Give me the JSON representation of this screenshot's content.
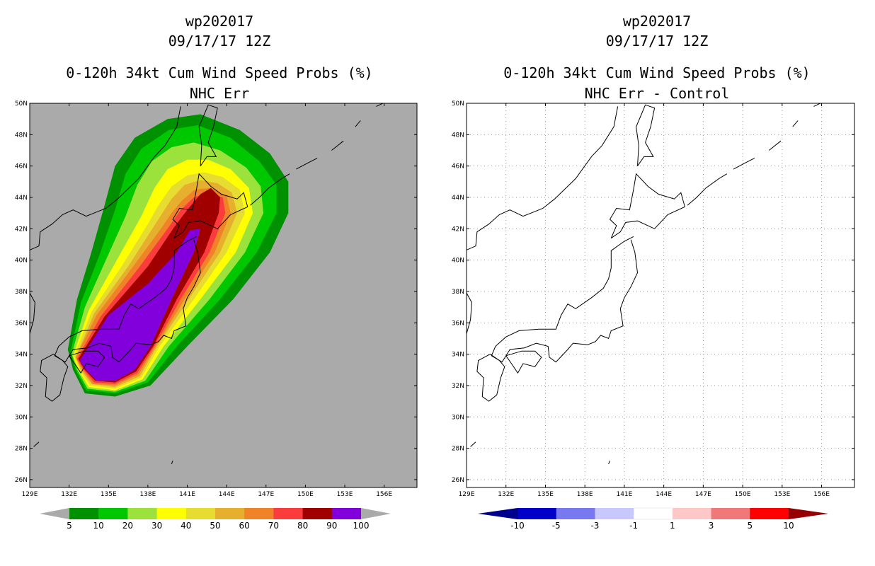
{
  "chart_data": [
    {
      "type": "heatmap",
      "storm_id": "wp202017",
      "datetime": "09/17/17 12Z",
      "title": "0-120h 34kt Cum Wind Speed Probs (%)",
      "subtitle": "NHC Err",
      "x_ticks": [
        "129E",
        "132E",
        "135E",
        "138E",
        "141E",
        "144E",
        "147E",
        "150E",
        "153E",
        "156E"
      ],
      "y_ticks": [
        "50N",
        "48N",
        "46N",
        "44N",
        "42N",
        "40N",
        "38N",
        "36N",
        "34N",
        "32N",
        "30N",
        "28N",
        "26N"
      ],
      "xlim": [
        129,
        158.5
      ],
      "ylim": [
        25.5,
        50
      ],
      "grid": false,
      "background": "#aaaaaa",
      "colorbar": {
        "labels": [
          "5",
          "10",
          "20",
          "30",
          "40",
          "50",
          "60",
          "70",
          "80",
          "90",
          "100"
        ],
        "colors": [
          "#009100",
          "#00c800",
          "#9be23c",
          "#ffff00",
          "#e6dc32",
          "#e6af2d",
          "#f08228",
          "#fa3c3c",
          "#a00000",
          "#8200dc"
        ],
        "end_color": "#aaaaaa"
      },
      "contours": [
        {
          "level": 5,
          "color": "#009100",
          "points": [
            [
              131.9,
              34.3
            ],
            [
              132.3,
              33.0
            ],
            [
              133.2,
              31.5
            ],
            [
              135.5,
              31.3
            ],
            [
              138.2,
              32.0
            ],
            [
              141.0,
              34.5
            ],
            [
              144.5,
              37.5
            ],
            [
              147.3,
              40.5
            ],
            [
              148.7,
              43.0
            ],
            [
              148.7,
              45.0
            ],
            [
              147.3,
              46.8
            ],
            [
              145.0,
              48.3
            ],
            [
              142.0,
              49.3
            ],
            [
              139.5,
              49.0
            ],
            [
              137.0,
              47.8
            ],
            [
              135.5,
              46.0
            ],
            [
              134.7,
              43.5
            ],
            [
              133.7,
              40.5
            ],
            [
              132.6,
              37.5
            ]
          ]
        },
        {
          "level": 10,
          "color": "#00c800",
          "points": [
            [
              132.1,
              34.1
            ],
            [
              132.5,
              33.0
            ],
            [
              133.3,
              31.7
            ],
            [
              135.5,
              31.5
            ],
            [
              138.0,
              32.2
            ],
            [
              140.2,
              34.5
            ],
            [
              143.5,
              37.5
            ],
            [
              146.3,
              40.5
            ],
            [
              147.8,
              43.0
            ],
            [
              147.8,
              44.8
            ],
            [
              146.5,
              46.3
            ],
            [
              144.3,
              47.8
            ],
            [
              141.8,
              48.6
            ],
            [
              139.6,
              48.3
            ],
            [
              137.5,
              47.1
            ],
            [
              136.3,
              45.5
            ],
            [
              135.5,
              43.2
            ],
            [
              134.3,
              40.3
            ],
            [
              132.9,
              37.3
            ]
          ]
        },
        {
          "level": 20,
          "color": "#9be23c",
          "points": [
            [
              132.2,
              34.0
            ],
            [
              132.6,
              33.0
            ],
            [
              133.4,
              31.8
            ],
            [
              135.5,
              31.6
            ],
            [
              137.8,
              32.3
            ],
            [
              139.6,
              34.5
            ],
            [
              142.7,
              37.5
            ],
            [
              145.4,
              40.5
            ],
            [
              146.8,
              43.0
            ],
            [
              146.6,
              44.7
            ],
            [
              145.5,
              45.9
            ],
            [
              143.5,
              47.0
            ],
            [
              141.5,
              47.5
            ],
            [
              139.8,
              47.2
            ],
            [
              138.3,
              46.3
            ],
            [
              137.2,
              44.8
            ],
            [
              136.3,
              42.8
            ],
            [
              134.8,
              40.0
            ],
            [
              133.2,
              37.0
            ]
          ]
        },
        {
          "level": 30,
          "color": "#ffff00",
          "points": [
            [
              132.3,
              33.9
            ],
            [
              132.7,
              33.0
            ],
            [
              133.5,
              31.9
            ],
            [
              135.5,
              31.7
            ],
            [
              137.6,
              32.4
            ],
            [
              139.2,
              34.5
            ],
            [
              142.0,
              37.5
            ],
            [
              144.7,
              40.5
            ],
            [
              146.0,
              43.0
            ],
            [
              145.7,
              44.6
            ],
            [
              144.3,
              45.8
            ],
            [
              142.6,
              46.4
            ],
            [
              141.0,
              46.4
            ],
            [
              139.5,
              45.8
            ],
            [
              138.5,
              44.6
            ],
            [
              137.5,
              42.8
            ],
            [
              135.5,
              39.8
            ],
            [
              133.5,
              36.8
            ]
          ]
        },
        {
          "level": 40,
          "color": "#e6dc32",
          "points": [
            [
              132.4,
              33.9
            ],
            [
              132.8,
              33.0
            ],
            [
              133.6,
              32.0
            ],
            [
              135.5,
              31.8
            ],
            [
              137.5,
              32.5
            ],
            [
              138.9,
              34.5
            ],
            [
              141.5,
              37.5
            ],
            [
              144.0,
              40.5
            ],
            [
              145.4,
              43.0
            ],
            [
              145.0,
              44.5
            ],
            [
              143.7,
              45.3
            ],
            [
              142.3,
              45.6
            ],
            [
              141.0,
              45.4
            ],
            [
              139.8,
              44.7
            ],
            [
              138.8,
              43.5
            ],
            [
              138.0,
              42.3
            ],
            [
              136.0,
              39.6
            ],
            [
              133.7,
              36.7
            ]
          ]
        },
        {
          "level": 50,
          "color": "#e6af2d",
          "points": [
            [
              132.5,
              33.8
            ],
            [
              132.9,
              33.0
            ],
            [
              133.7,
              32.1
            ],
            [
              135.5,
              31.9
            ],
            [
              137.4,
              32.6
            ],
            [
              138.7,
              34.5
            ],
            [
              141.1,
              37.5
            ],
            [
              143.5,
              40.5
            ],
            [
              144.8,
              43.0
            ],
            [
              144.4,
              44.3
            ],
            [
              143.3,
              44.9
            ],
            [
              142.0,
              45.1
            ],
            [
              140.8,
              44.8
            ],
            [
              139.8,
              43.9
            ],
            [
              138.8,
              42.6
            ],
            [
              136.5,
              39.6
            ],
            [
              133.9,
              36.6
            ]
          ]
        },
        {
          "level": 60,
          "color": "#f08228",
          "points": [
            [
              132.5,
              33.8
            ],
            [
              133.0,
              33.0
            ],
            [
              133.8,
              32.1
            ],
            [
              135.5,
              32.0
            ],
            [
              137.3,
              32.7
            ],
            [
              138.6,
              34.5
            ],
            [
              140.8,
              37.5
            ],
            [
              143.1,
              40.5
            ],
            [
              144.3,
              43.0
            ],
            [
              144.0,
              44.1
            ],
            [
              142.8,
              44.6
            ],
            [
              141.6,
              44.5
            ],
            [
              140.6,
              43.8
            ],
            [
              139.8,
              43.0
            ],
            [
              139.0,
              42.0
            ],
            [
              136.8,
              39.5
            ],
            [
              134.1,
              36.5
            ]
          ]
        },
        {
          "level": 70,
          "color": "#fa3c3c",
          "points": [
            [
              132.6,
              33.7
            ],
            [
              133.1,
              33.0
            ],
            [
              133.9,
              32.2
            ],
            [
              135.5,
              32.1
            ],
            [
              137.2,
              32.8
            ],
            [
              138.5,
              34.5
            ],
            [
              140.5,
              37.5
            ],
            [
              142.7,
              40.5
            ],
            [
              143.9,
              43.0
            ],
            [
              143.7,
              44.0
            ],
            [
              142.6,
              44.3
            ],
            [
              141.5,
              44.0
            ],
            [
              140.5,
              43.2
            ],
            [
              139.5,
              42.0
            ],
            [
              137.3,
              39.5
            ],
            [
              134.4,
              36.4
            ]
          ]
        },
        {
          "level": 80,
          "color": "#a00000",
          "points": [
            [
              132.7,
              33.7
            ],
            [
              133.2,
              33.0
            ],
            [
              134.0,
              32.3
            ],
            [
              135.5,
              32.2
            ],
            [
              137.1,
              32.9
            ],
            [
              138.4,
              34.5
            ],
            [
              140.2,
              37.5
            ],
            [
              142.3,
              40.5
            ],
            [
              143.4,
              43.0
            ],
            [
              143.5,
              44.0
            ],
            [
              142.8,
              44.6
            ],
            [
              142.0,
              44.2
            ],
            [
              141.0,
              43.2
            ],
            [
              140.0,
              42.1
            ],
            [
              138.0,
              39.6
            ],
            [
              134.7,
              36.4
            ]
          ]
        },
        {
          "level": 90,
          "color": "#8200dc",
          "points": [
            [
              132.8,
              33.6
            ],
            [
              133.3,
              33.0
            ],
            [
              134.1,
              32.3
            ],
            [
              135.5,
              32.3
            ],
            [
              137.0,
              33.0
            ],
            [
              138.2,
              34.5
            ],
            [
              139.8,
              37.5
            ],
            [
              141.5,
              40.5
            ],
            [
              142.0,
              42.0
            ],
            [
              141.2,
              41.9
            ],
            [
              140.2,
              40.5
            ],
            [
              138.0,
              38.5
            ],
            [
              135.0,
              36.5
            ]
          ]
        }
      ]
    },
    {
      "type": "heatmap",
      "storm_id": "wp202017",
      "datetime": "09/17/17 12Z",
      "title": "0-120h 34kt Cum Wind Speed Probs (%)",
      "subtitle": "NHC Err - Control",
      "x_ticks": [
        "129E",
        "132E",
        "135E",
        "138E",
        "141E",
        "144E",
        "147E",
        "150E",
        "153E",
        "156E"
      ],
      "y_ticks": [
        "50N",
        "48N",
        "46N",
        "44N",
        "42N",
        "40N",
        "38N",
        "36N",
        "34N",
        "32N",
        "30N",
        "28N",
        "26N"
      ],
      "xlim": [
        129,
        158.5
      ],
      "ylim": [
        25.5,
        50
      ],
      "grid": true,
      "background": "#ffffff",
      "colorbar": {
        "labels": [
          "-10",
          "-5",
          "-3",
          "-1",
          "1",
          "3",
          "5",
          "10"
        ],
        "colors": [
          "#0000c8",
          "#7878f0",
          "#c8c8ff",
          "#ffffff",
          "#ffc8c8",
          "#f07878",
          "#ff0000"
        ],
        "left_end_color": "#00008c",
        "right_end_color": "#960000"
      }
    }
  ]
}
